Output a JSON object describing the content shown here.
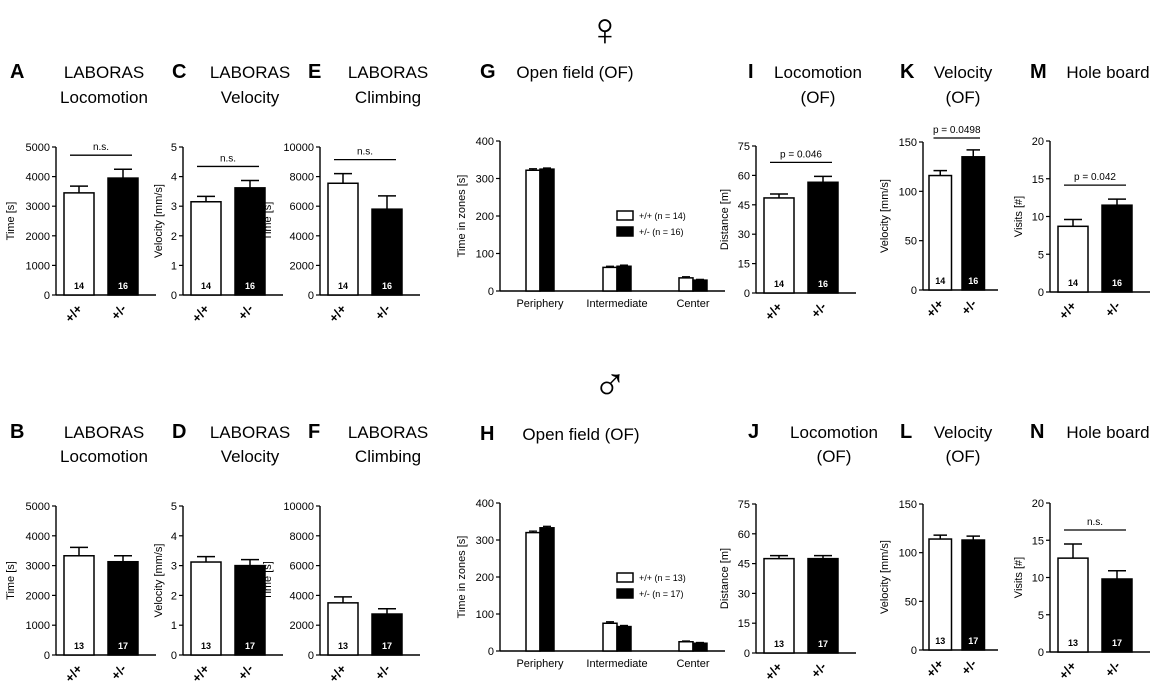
{
  "sex_symbols": {
    "top": "♀",
    "bottom": "♂"
  },
  "colors": {
    "wt": "#ffffff",
    "het": "#000000",
    "stroke": "#000000"
  },
  "chart_data": [
    {
      "id": "A",
      "letter": "A",
      "title": [
        "LABORAS",
        "Locomotion"
      ],
      "type": "bar",
      "ylabel": "Time [s]",
      "ylim": [
        0,
        5000
      ],
      "yticks": [
        0,
        1000,
        2000,
        3000,
        4000,
        5000
      ],
      "categories": [
        "+/+",
        "+/-"
      ],
      "values": [
        3450,
        3950
      ],
      "errors": [
        230,
        300
      ],
      "n": [
        "14",
        "16"
      ],
      "sig": "n.s."
    },
    {
      "id": "C",
      "letter": "C",
      "title": [
        "LABORAS",
        "Velocity"
      ],
      "type": "bar",
      "ylabel": "Velocity [mm/s]",
      "ylim": [
        0,
        5
      ],
      "yticks": [
        0,
        1,
        2,
        3,
        4,
        5
      ],
      "categories": [
        "+/+",
        "+/-"
      ],
      "values": [
        3.15,
        3.62
      ],
      "errors": [
        0.18,
        0.25
      ],
      "n": [
        "14",
        "16"
      ],
      "sig": "n.s."
    },
    {
      "id": "E",
      "letter": "E",
      "title": [
        "LABORAS",
        "Climbing"
      ],
      "type": "bar",
      "ylabel": "Time [s]",
      "ylim": [
        0,
        10000
      ],
      "yticks": [
        0,
        2000,
        4000,
        6000,
        8000,
        10000
      ],
      "categories": [
        "+/+",
        "+/-"
      ],
      "values": [
        7550,
        5800
      ],
      "errors": [
        650,
        900
      ],
      "n": [
        "14",
        "16"
      ],
      "sig": "n.s."
    },
    {
      "id": "G",
      "letter": "G",
      "title": [
        "Open field (OF)"
      ],
      "type": "bar",
      "ylabel": "Time in zones [s]",
      "ylim": [
        0,
        400
      ],
      "yticks": [
        0,
        100,
        200,
        300,
        400
      ],
      "categories": [
        "Periphery",
        "Intermediate",
        "Center"
      ],
      "series": [
        {
          "name": "+/+ (n = 14)",
          "values": [
            322,
            63,
            35
          ],
          "errors": [
            4,
            3,
            3
          ]
        },
        {
          "name": "+/- (n = 16)",
          "values": [
            325,
            66,
            29
          ],
          "errors": [
            3,
            3,
            2
          ]
        }
      ]
    },
    {
      "id": "I",
      "letter": "I",
      "title": [
        "Locomotion",
        "(OF)"
      ],
      "type": "bar",
      "ylabel": "Distance [m]",
      "ylim": [
        0,
        75
      ],
      "yticks": [
        0,
        15,
        30,
        45,
        60,
        75
      ],
      "categories": [
        "+/+",
        "+/-"
      ],
      "values": [
        48.5,
        56.5
      ],
      "errors": [
        2,
        3
      ],
      "n": [
        "14",
        "16"
      ],
      "sig": "p = 0.046"
    },
    {
      "id": "K",
      "letter": "K",
      "title": [
        "Velocity",
        "(OF)"
      ],
      "type": "bar",
      "ylabel": "Velocity [mm/s]",
      "ylim": [
        0,
        150
      ],
      "yticks": [
        0,
        50,
        100,
        150
      ],
      "categories": [
        "+/+",
        "+/-"
      ],
      "values": [
        116,
        135
      ],
      "errors": [
        5,
        7
      ],
      "n": [
        "14",
        "16"
      ],
      "sig": "p = 0.0498"
    },
    {
      "id": "M",
      "letter": "M",
      "title": [
        "Hole board"
      ],
      "type": "bar",
      "ylabel": "Visits [#]",
      "ylim": [
        0,
        20
      ],
      "yticks": [
        0,
        5,
        10,
        15,
        20
      ],
      "categories": [
        "+/+",
        "+/-"
      ],
      "values": [
        8.7,
        11.5
      ],
      "errors": [
        0.9,
        0.8
      ],
      "n": [
        "14",
        "16"
      ],
      "sig": "p = 0.042"
    },
    {
      "id": "B",
      "letter": "B",
      "title": [
        "LABORAS",
        "Locomotion"
      ],
      "type": "bar",
      "ylabel": "Time [s]",
      "ylim": [
        0,
        5000
      ],
      "yticks": [
        0,
        1000,
        2000,
        3000,
        4000,
        5000
      ],
      "categories": [
        "+/+",
        "+/-"
      ],
      "values": [
        3330,
        3130
      ],
      "errors": [
        280,
        200
      ],
      "n": [
        "13",
        "17"
      ],
      "sig": ""
    },
    {
      "id": "D",
      "letter": "D",
      "title": [
        "LABORAS",
        "Velocity"
      ],
      "type": "bar",
      "ylabel": "Velocity [mm/s]",
      "ylim": [
        0,
        5
      ],
      "yticks": [
        0,
        1,
        2,
        3,
        4,
        5
      ],
      "categories": [
        "+/+",
        "+/-"
      ],
      "values": [
        3.12,
        3.0
      ],
      "errors": [
        0.18,
        0.2
      ],
      "n": [
        "13",
        "17"
      ],
      "sig": ""
    },
    {
      "id": "F",
      "letter": "F",
      "title": [
        "LABORAS",
        "Climbing"
      ],
      "type": "bar",
      "ylabel": "Time [s]",
      "ylim": [
        0,
        10000
      ],
      "yticks": [
        0,
        2000,
        4000,
        6000,
        8000,
        10000
      ],
      "categories": [
        "+/+",
        "+/-"
      ],
      "values": [
        3500,
        2750
      ],
      "errors": [
        400,
        350
      ],
      "n": [
        "13",
        "17"
      ],
      "sig": ""
    },
    {
      "id": "H",
      "letter": "H",
      "title": [
        "Open field (OF)"
      ],
      "type": "bar",
      "ylabel": "Time in zones [s]",
      "ylim": [
        0,
        400
      ],
      "yticks": [
        0,
        100,
        200,
        300,
        400
      ],
      "categories": [
        "Periphery",
        "Intermediate",
        "Center"
      ],
      "series": [
        {
          "name": "+/+ (n = 13)",
          "values": [
            320,
            75,
            25
          ],
          "errors": [
            4,
            4,
            2
          ]
        },
        {
          "name": "+/- (n = 17)",
          "values": [
            333,
            66,
            21
          ],
          "errors": [
            4,
            3,
            2
          ]
        }
      ]
    },
    {
      "id": "J",
      "letter": "J",
      "title": [
        "Locomotion",
        "(OF)"
      ],
      "type": "bar",
      "ylabel": "Distance [m]",
      "ylim": [
        0,
        75
      ],
      "yticks": [
        0,
        15,
        30,
        45,
        60,
        75
      ],
      "categories": [
        "+/+",
        "+/-"
      ],
      "values": [
        47.5,
        47.5
      ],
      "errors": [
        1.5,
        1.5
      ],
      "n": [
        "13",
        "17"
      ],
      "sig": ""
    },
    {
      "id": "L",
      "letter": "L",
      "title": [
        "Velocity",
        "(OF)"
      ],
      "type": "bar",
      "ylabel": "Velocity [mm/s]",
      "ylim": [
        0,
        150
      ],
      "yticks": [
        0,
        50,
        100,
        150
      ],
      "categories": [
        "+/+",
        "+/-"
      ],
      "values": [
        114,
        113
      ],
      "errors": [
        4,
        4
      ],
      "n": [
        "13",
        "17"
      ],
      "sig": ""
    },
    {
      "id": "N",
      "letter": "N",
      "title": [
        "Hole board"
      ],
      "type": "bar",
      "ylabel": "Visits [#]",
      "ylim": [
        0,
        20
      ],
      "yticks": [
        0,
        5,
        10,
        15,
        20
      ],
      "categories": [
        "+/+",
        "+/-"
      ],
      "values": [
        12.6,
        9.8
      ],
      "errors": [
        1.9,
        1.1
      ],
      "n": [
        "13",
        "17"
      ],
      "sig": "n.s."
    }
  ]
}
